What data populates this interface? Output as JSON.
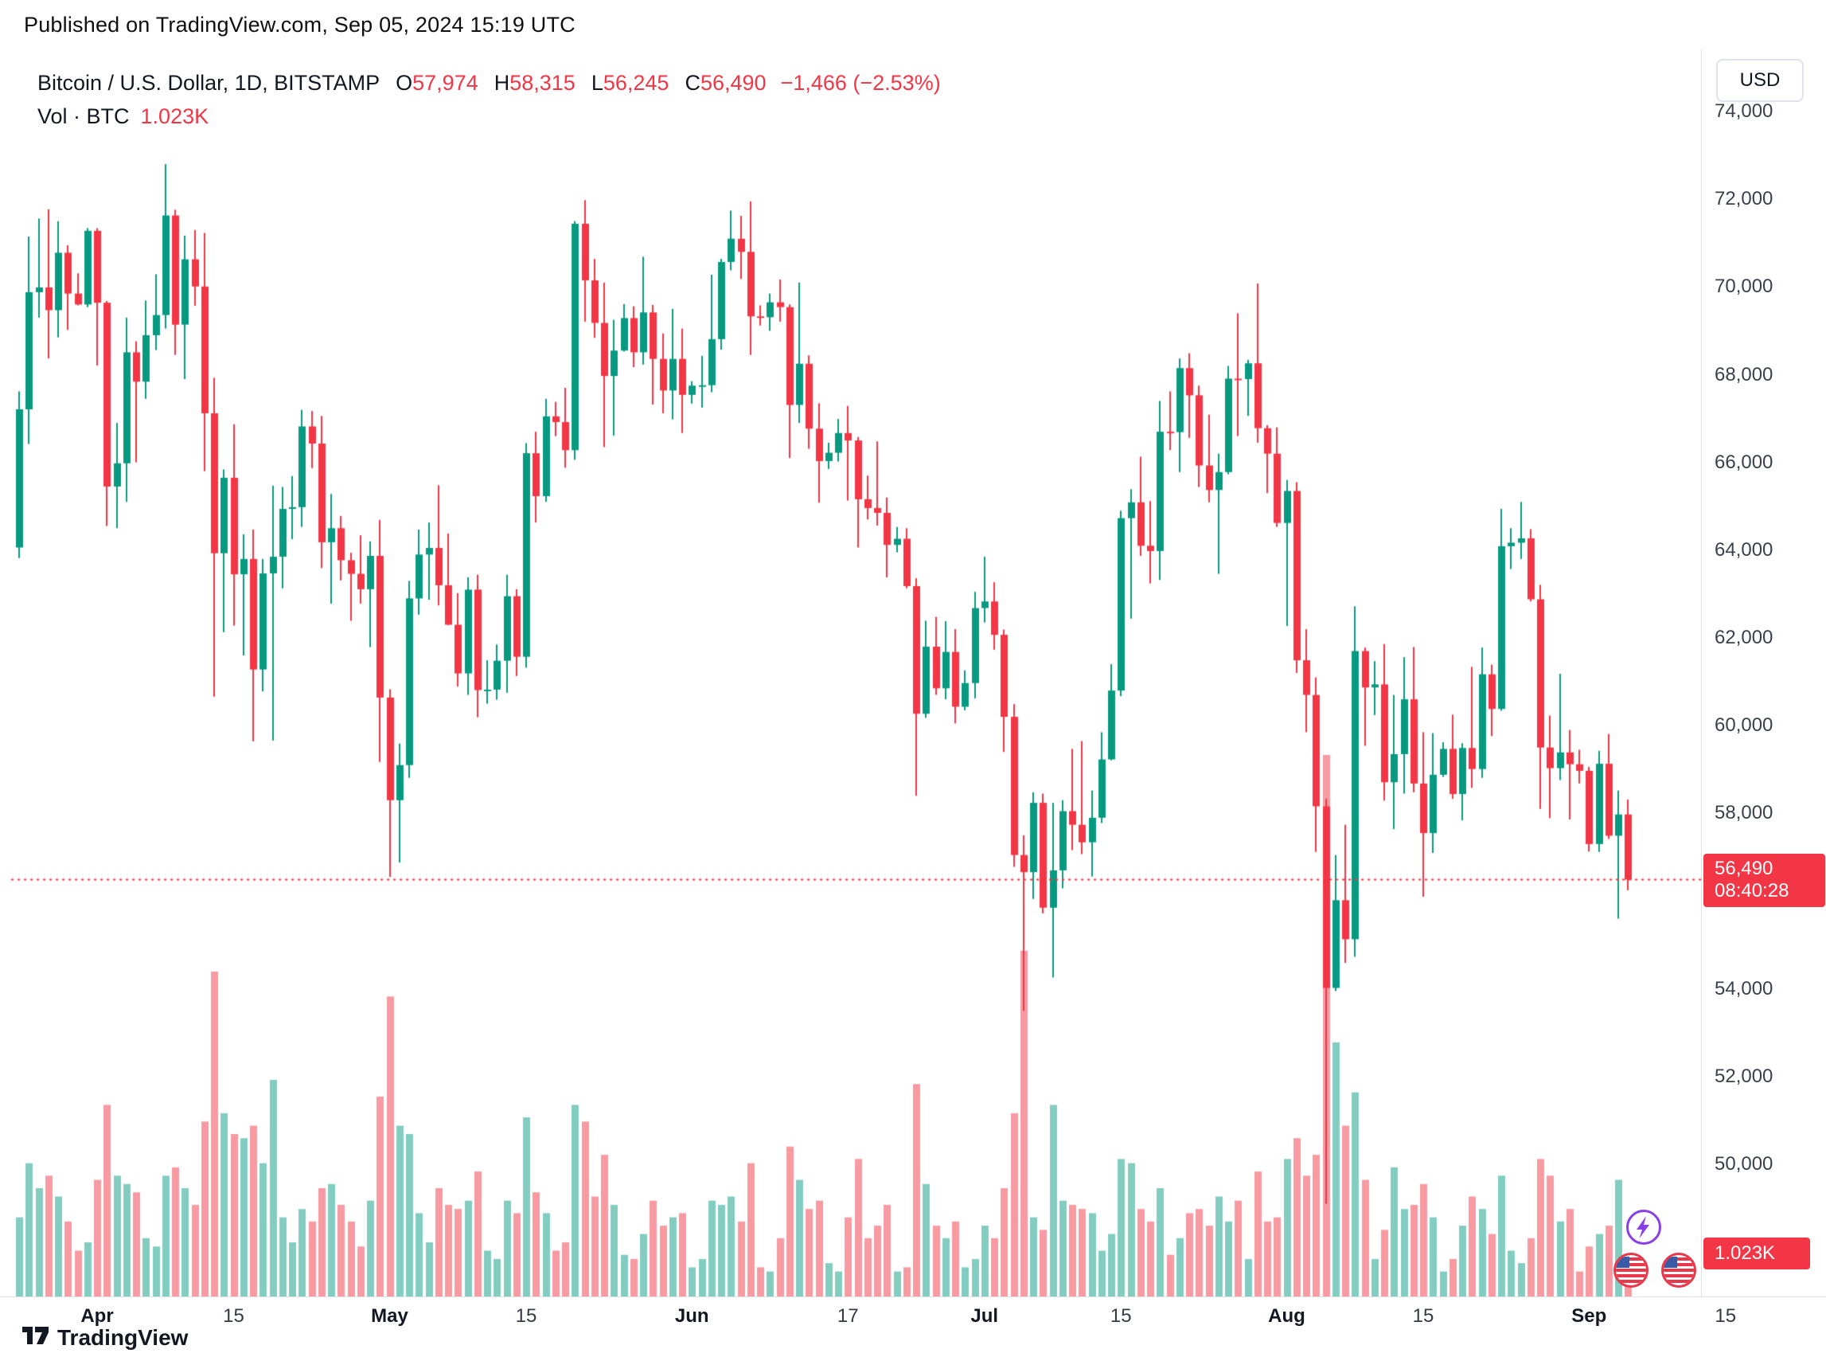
{
  "published_bar": {
    "text": "Published on TradingView.com, Sep 05, 2024 15:19 UTC"
  },
  "legend": {
    "title": "Bitcoin / U.S. Dollar, 1D, BITSTAMP",
    "o": {
      "k": "O",
      "v": "57,974"
    },
    "h": {
      "k": "H",
      "v": "58,315"
    },
    "l": {
      "k": "L",
      "v": "56,245"
    },
    "c": {
      "k": "C",
      "v": "56,490"
    },
    "change": "−1,466 (−2.53%)",
    "vol_label": "Vol · BTC",
    "vol_value": "1.023K"
  },
  "price_scale": {
    "currency_button": "USD",
    "price_badge": {
      "price": "56,490",
      "countdown": "08:40:28"
    },
    "volume_badge": "1.023K"
  },
  "footer": {
    "brand": "TradingView"
  },
  "icons": {
    "boost": "lightning-icon",
    "events": [
      "us-flag-icon",
      "us-flag-icon"
    ],
    "logo": "tradingview-mark-icon"
  },
  "colors": {
    "up": "#089981",
    "down": "#F23645",
    "volume_up": "rgba(8,153,129,0.5)",
    "volume_down": "rgba(242,54,69,0.5)",
    "badge_bg": "#F23645",
    "border": "#e0e3eb",
    "axis_text": "#3c404b"
  },
  "chart_data": {
    "type": "candlestick",
    "title": "Bitcoin / U.S. Dollar",
    "interval": "1D",
    "exchange": "BITSTAMP",
    "price_unit": "USD",
    "volume_unit": "BTC",
    "start_date": "2024-03-24",
    "end_date": "2024-09-05",
    "last": {
      "open": 57974,
      "high": 58315,
      "low": 56245,
      "close": 56490,
      "change": -1466,
      "change_pct": -2.53,
      "volume_btc": 1023,
      "countdown": "08:40:28"
    },
    "price_axis": {
      "min": 50000,
      "max": 74000,
      "tick_step": 2000,
      "grid": false,
      "legend_position": "top-left",
      "ticks": [
        {
          "value": 74000,
          "label": "74,000"
        },
        {
          "value": 72000,
          "label": "72,000"
        },
        {
          "value": 70000,
          "label": "70,000"
        },
        {
          "value": 68000,
          "label": "68,000"
        },
        {
          "value": 66000,
          "label": "66,000"
        },
        {
          "value": 64000,
          "label": "64,000"
        },
        {
          "value": 62000,
          "label": "62,000"
        },
        {
          "value": 60000,
          "label": "60,000"
        },
        {
          "value": 58000,
          "label": "58,000"
        },
        {
          "value": 54000,
          "label": "54,000"
        },
        {
          "value": 52000,
          "label": "52,000"
        },
        {
          "value": 50000,
          "label": "50,000"
        }
      ]
    },
    "time_axis_ticks": [
      {
        "label": "Apr",
        "day_index": 8,
        "month": true
      },
      {
        "label": "15",
        "day_index": 22,
        "month": false
      },
      {
        "label": "May",
        "day_index": 38,
        "month": true
      },
      {
        "label": "15",
        "day_index": 52,
        "month": false
      },
      {
        "label": "Jun",
        "day_index": 69,
        "month": true
      },
      {
        "label": "17",
        "day_index": 85,
        "month": false
      },
      {
        "label": "Jul",
        "day_index": 99,
        "month": true
      },
      {
        "label": "15",
        "day_index": 113,
        "month": false
      },
      {
        "label": "Aug",
        "day_index": 130,
        "month": true
      },
      {
        "label": "15",
        "day_index": 144,
        "month": false
      },
      {
        "label": "Sep",
        "day_index": 161,
        "month": true
      },
      {
        "label": "15",
        "day_index": 175,
        "month": false
      }
    ],
    "current_price_line": {
      "price": 56490,
      "style": "dotted",
      "color": "#F23645"
    },
    "candle_format": [
      "open",
      "high",
      "low",
      "close",
      "volume_btc"
    ],
    "candles": [
      [
        64060,
        67620,
        63820,
        67210,
        1900
      ],
      [
        67210,
        71150,
        66420,
        69880,
        3200
      ],
      [
        69880,
        71560,
        69300,
        69990,
        2600
      ],
      [
        69990,
        71770,
        68370,
        69470,
        2900
      ],
      [
        69470,
        71500,
        68850,
        70780,
        2400
      ],
      [
        70780,
        70950,
        69020,
        69850,
        1800
      ],
      [
        69850,
        70310,
        69580,
        69600,
        1100
      ],
      [
        69600,
        71340,
        69540,
        71280,
        1300
      ],
      [
        71280,
        71340,
        68210,
        69640,
        2800
      ],
      [
        69640,
        69680,
        64550,
        65450,
        4600
      ],
      [
        65450,
        66900,
        64500,
        65980,
        2900
      ],
      [
        65980,
        69300,
        65100,
        68510,
        2700
      ],
      [
        68510,
        68760,
        66000,
        67840,
        2500
      ],
      [
        67840,
        69690,
        67450,
        68900,
        1400
      ],
      [
        68900,
        70290,
        68560,
        69360,
        1200
      ],
      [
        69360,
        72800,
        69050,
        71630,
        2900
      ],
      [
        71630,
        71760,
        68450,
        69140,
        3100
      ],
      [
        69140,
        71170,
        67900,
        70630,
        2600
      ],
      [
        70630,
        71300,
        69570,
        70010,
        2200
      ],
      [
        70010,
        71230,
        65800,
        67120,
        4200
      ],
      [
        67120,
        67930,
        60660,
        63930,
        7800
      ],
      [
        63930,
        65840,
        62130,
        65650,
        4400
      ],
      [
        65650,
        66870,
        62280,
        63450,
        3900
      ],
      [
        63450,
        64360,
        61600,
        63800,
        3800
      ],
      [
        63800,
        64470,
        59640,
        61280,
        4100
      ],
      [
        61280,
        63800,
        60780,
        63470,
        3200
      ],
      [
        63470,
        65470,
        59660,
        63850,
        5200
      ],
      [
        63850,
        65440,
        63130,
        64940,
        1900
      ],
      [
        64940,
        65690,
        64250,
        64980,
        1300
      ],
      [
        64980,
        67200,
        64530,
        66820,
        2100
      ],
      [
        66820,
        67170,
        65870,
        66430,
        1800
      ],
      [
        66430,
        67060,
        63590,
        64180,
        2600
      ],
      [
        64180,
        65280,
        62780,
        64500,
        2700
      ],
      [
        64500,
        64780,
        63310,
        63770,
        2200
      ],
      [
        63770,
        63940,
        62390,
        63460,
        1800
      ],
      [
        63460,
        64340,
        62780,
        63110,
        1200
      ],
      [
        63110,
        64200,
        61790,
        63870,
        2300
      ],
      [
        63870,
        64690,
        59170,
        60640,
        4800
      ],
      [
        60640,
        60830,
        56550,
        58300,
        7200
      ],
      [
        58300,
        59590,
        56880,
        59100,
        4100
      ],
      [
        59100,
        63300,
        58810,
        62900,
        3900
      ],
      [
        62900,
        64470,
        62530,
        63900,
        2000
      ],
      [
        63900,
        64630,
        62870,
        64050,
        1300
      ],
      [
        64050,
        65480,
        62740,
        63200,
        2600
      ],
      [
        63200,
        64380,
        62290,
        62300,
        2200
      ],
      [
        62300,
        63020,
        60890,
        61190,
        2100
      ],
      [
        61190,
        63380,
        60700,
        63100,
        2300
      ],
      [
        63100,
        63440,
        60190,
        60810,
        3000
      ],
      [
        60810,
        61490,
        60500,
        60820,
        1100
      ],
      [
        60820,
        61850,
        60590,
        61480,
        900
      ],
      [
        61480,
        63440,
        60750,
        62950,
        2300
      ],
      [
        62950,
        63110,
        61130,
        61570,
        2000
      ],
      [
        61570,
        66440,
        61320,
        66210,
        4300
      ],
      [
        66210,
        66700,
        64630,
        65230,
        2500
      ],
      [
        65230,
        67450,
        65100,
        67050,
        2000
      ],
      [
        67050,
        67380,
        66600,
        66920,
        1100
      ],
      [
        66920,
        67700,
        65880,
        66280,
        1300
      ],
      [
        66280,
        71500,
        66060,
        71440,
        4600
      ],
      [
        71440,
        71980,
        69210,
        70150,
        4200
      ],
      [
        70150,
        70640,
        68840,
        69180,
        2400
      ],
      [
        69180,
        70100,
        66350,
        67970,
        3400
      ],
      [
        67970,
        69250,
        66610,
        68550,
        2200
      ],
      [
        68550,
        69610,
        68530,
        69290,
        1000
      ],
      [
        69290,
        69560,
        68170,
        68510,
        900
      ],
      [
        68510,
        70690,
        68230,
        69420,
        1500
      ],
      [
        69420,
        69590,
        67320,
        68360,
        2300
      ],
      [
        68360,
        68940,
        67120,
        67640,
        1700
      ],
      [
        67640,
        69500,
        66980,
        68360,
        1900
      ],
      [
        68360,
        69050,
        66670,
        67540,
        2000
      ],
      [
        67540,
        67850,
        67340,
        67750,
        700
      ],
      [
        67750,
        68430,
        67250,
        67760,
        900
      ],
      [
        67760,
        70280,
        67600,
        68810,
        2300
      ],
      [
        68810,
        70640,
        68570,
        70570,
        2200
      ],
      [
        70570,
        71740,
        70380,
        71100,
        2400
      ],
      [
        71100,
        71620,
        70180,
        70800,
        1800
      ],
      [
        70800,
        71950,
        68450,
        69330,
        3200
      ],
      [
        69330,
        69580,
        69120,
        69310,
        700
      ],
      [
        69310,
        69850,
        69000,
        69650,
        600
      ],
      [
        69650,
        70170,
        69210,
        69540,
        1400
      ],
      [
        69540,
        69600,
        66100,
        67310,
        3600
      ],
      [
        67310,
        70100,
        66900,
        68250,
        2800
      ],
      [
        68250,
        68440,
        66310,
        66770,
        2100
      ],
      [
        66770,
        67350,
        65080,
        66030,
        2300
      ],
      [
        66030,
        66450,
        65850,
        66220,
        800
      ],
      [
        66220,
        66990,
        66020,
        66670,
        600
      ],
      [
        66670,
        67290,
        65130,
        66500,
        1900
      ],
      [
        66500,
        66580,
        64060,
        65160,
        3300
      ],
      [
        65160,
        65700,
        64700,
        64960,
        1400
      ],
      [
        64960,
        66480,
        64560,
        64850,
        1700
      ],
      [
        64850,
        65200,
        63380,
        64120,
        2200
      ],
      [
        64120,
        64530,
        63950,
        64260,
        600
      ],
      [
        64260,
        64500,
        63130,
        63180,
        700
      ],
      [
        63180,
        63360,
        58400,
        60270,
        5100
      ],
      [
        60270,
        62390,
        60180,
        61800,
        2700
      ],
      [
        61800,
        62480,
        60700,
        60850,
        1700
      ],
      [
        60850,
        62380,
        60600,
        61680,
        1400
      ],
      [
        61680,
        62200,
        60050,
        60430,
        1800
      ],
      [
        60430,
        61260,
        60350,
        60970,
        700
      ],
      [
        60970,
        63050,
        60620,
        62680,
        900
      ],
      [
        62680,
        63850,
        62350,
        62830,
        1700
      ],
      [
        62830,
        63270,
        61730,
        62070,
        1400
      ],
      [
        62070,
        62190,
        59400,
        60200,
        2600
      ],
      [
        60200,
        60490,
        56780,
        57050,
        4400
      ],
      [
        57050,
        57500,
        53500,
        56660,
        8300
      ],
      [
        56660,
        58480,
        56050,
        58240,
        1900
      ],
      [
        58240,
        58450,
        55720,
        55850,
        1600
      ],
      [
        55850,
        58240,
        54260,
        56700,
        4600
      ],
      [
        56700,
        58300,
        56290,
        58050,
        2300
      ],
      [
        58050,
        59470,
        57160,
        57740,
        2200
      ],
      [
        57740,
        59650,
        57070,
        57340,
        2100
      ],
      [
        57340,
        58520,
        56560,
        57900,
        2000
      ],
      [
        57900,
        59850,
        57780,
        59230,
        1100
      ],
      [
        59230,
        61400,
        59210,
        60800,
        1500
      ],
      [
        60800,
        64900,
        60670,
        64730,
        3300
      ],
      [
        64730,
        65390,
        62440,
        65090,
        3200
      ],
      [
        65090,
        66130,
        63870,
        64100,
        2100
      ],
      [
        64100,
        65120,
        63240,
        63980,
        1800
      ],
      [
        63980,
        67400,
        63320,
        66700,
        2600
      ],
      [
        66700,
        67620,
        66280,
        66690,
        1000
      ],
      [
        66690,
        68370,
        65780,
        68150,
        1400
      ],
      [
        68150,
        68490,
        66560,
        67530,
        2000
      ],
      [
        67530,
        67750,
        65440,
        65930,
        2100
      ],
      [
        65930,
        67090,
        65090,
        65370,
        1700
      ],
      [
        65370,
        66200,
        63460,
        65780,
        2400
      ],
      [
        65780,
        68200,
        65730,
        67910,
        1800
      ],
      [
        67910,
        69400,
        66600,
        67900,
        2300
      ],
      [
        67900,
        68340,
        67060,
        68260,
        900
      ],
      [
        68260,
        70080,
        66450,
        66780,
        3000
      ],
      [
        66780,
        66850,
        65300,
        66200,
        1800
      ],
      [
        66200,
        66800,
        64530,
        64620,
        1900
      ],
      [
        64620,
        65600,
        62270,
        65350,
        3300
      ],
      [
        65350,
        65550,
        61200,
        61490,
        3800
      ],
      [
        61490,
        62200,
        59850,
        60700,
        2900
      ],
      [
        60700,
        61100,
        57120,
        58160,
        3400
      ],
      [
        58160,
        58330,
        49100,
        54020,
        13000
      ],
      [
        54020,
        57050,
        53950,
        56020,
        6100
      ],
      [
        56020,
        57740,
        54590,
        55130,
        4100
      ],
      [
        55130,
        62720,
        54730,
        61700,
        4900
      ],
      [
        61700,
        61780,
        59540,
        60870,
        2800
      ],
      [
        60870,
        61470,
        60240,
        60940,
        900
      ],
      [
        60940,
        61860,
        58290,
        58710,
        1600
      ],
      [
        58710,
        60700,
        57640,
        59350,
        3100
      ],
      [
        59350,
        61560,
        58450,
        60600,
        2100
      ],
      [
        60600,
        61790,
        58480,
        58680,
        2200
      ],
      [
        58680,
        59850,
        56100,
        57550,
        2700
      ],
      [
        57550,
        59830,
        57100,
        58880,
        1900
      ],
      [
        58880,
        59620,
        58830,
        59470,
        600
      ],
      [
        59470,
        60250,
        58330,
        58440,
        900
      ],
      [
        58440,
        59600,
        57840,
        59490,
        1700
      ],
      [
        59490,
        61340,
        58580,
        59010,
        2400
      ],
      [
        59010,
        61780,
        58810,
        61170,
        2100
      ],
      [
        61170,
        61390,
        59760,
        60380,
        1500
      ],
      [
        60380,
        64940,
        60340,
        64090,
        2900
      ],
      [
        64090,
        64500,
        63570,
        64170,
        1100
      ],
      [
        64170,
        65100,
        63800,
        64270,
        800
      ],
      [
        64270,
        64480,
        62830,
        62880,
        1400
      ],
      [
        62880,
        63210,
        58100,
        59500,
        3300
      ],
      [
        59500,
        60230,
        57890,
        59030,
        2900
      ],
      [
        59030,
        61180,
        58760,
        59390,
        1800
      ],
      [
        59390,
        59900,
        57860,
        59120,
        2100
      ],
      [
        59120,
        59450,
        58680,
        58970,
        600
      ],
      [
        58970,
        59060,
        57130,
        57300,
        1200
      ],
      [
        57300,
        59425,
        57120,
        59130,
        1500
      ],
      [
        59130,
        59810,
        57415,
        57490,
        1700
      ],
      [
        57490,
        58520,
        55600,
        57974,
        2800
      ],
      [
        57974,
        58315,
        56245,
        56490,
        1023
      ]
    ]
  }
}
